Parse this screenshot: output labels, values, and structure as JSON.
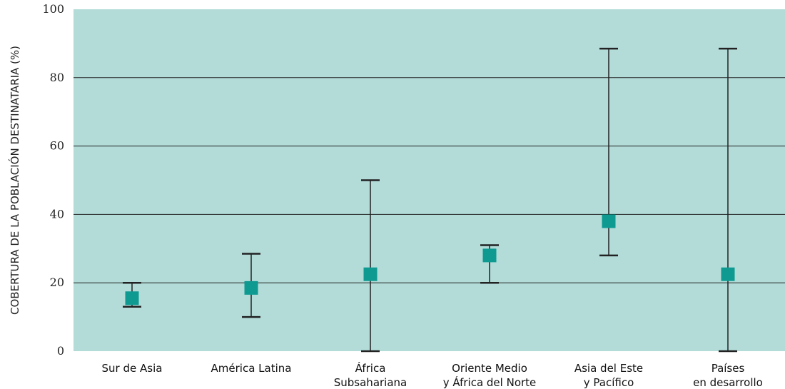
{
  "chart_data": {
    "type": "scatter",
    "ylabel": "COBERTURA DE LA POBLACIÓN DESTINATARIA (%)",
    "xlabel": "",
    "ylim": [
      0,
      100
    ],
    "yticks": [
      0,
      20,
      40,
      60,
      80,
      100
    ],
    "grid": true,
    "categories": [
      [
        "Sur de Asia"
      ],
      [
        "América Latina"
      ],
      [
        "África",
        "Subsahariana"
      ],
      [
        "Oriente Medio",
        "y África del Norte"
      ],
      [
        "Asia del Este",
        "y Pacífico"
      ],
      [
        "Países",
        "en desarrollo"
      ]
    ],
    "values": [
      15.5,
      18.5,
      22.5,
      28,
      38,
      22.5
    ],
    "error_low": [
      13,
      10,
      0,
      20,
      28,
      0
    ],
    "error_high": [
      20,
      28.5,
      50,
      31,
      88.5,
      88.5
    ],
    "colors": {
      "plot_bg": "#b3dcd9",
      "marker": "#0e9a91",
      "whisker": "#222222",
      "grid": "#222222"
    }
  }
}
